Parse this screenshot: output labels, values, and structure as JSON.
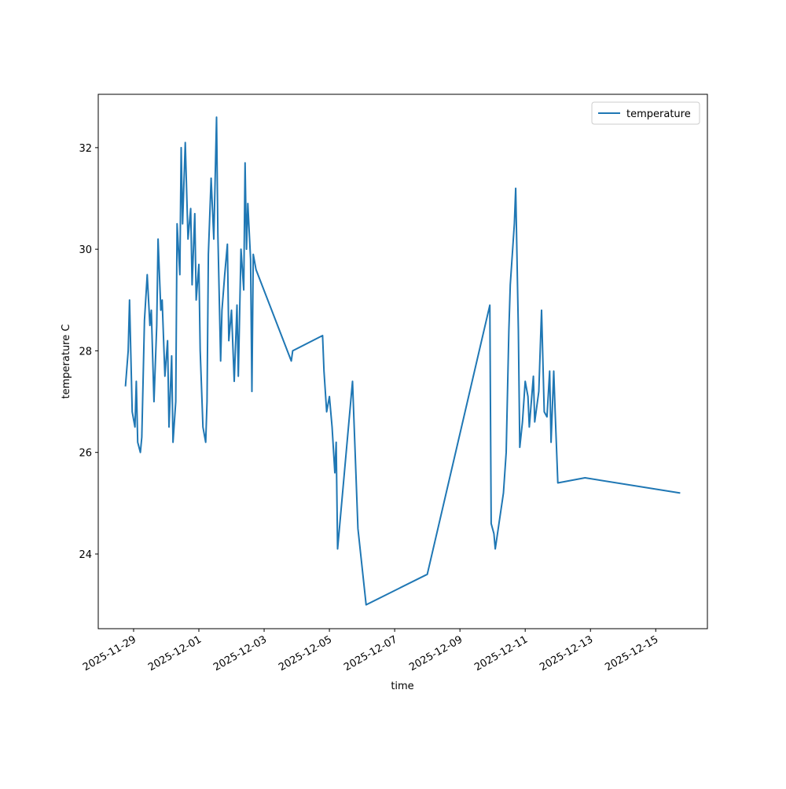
{
  "chart_data": {
    "type": "line",
    "x": [
      "2025-11-28T18:00",
      "2025-11-28T20:00",
      "2025-11-28T21:00",
      "2025-11-28T22:00",
      "2025-11-28T23:00",
      "2025-11-29T01:00",
      "2025-11-29T02:00",
      "2025-11-29T03:00",
      "2025-11-29T05:00",
      "2025-11-29T06:00",
      "2025-11-29T08:00",
      "2025-11-29T10:00",
      "2025-11-29T12:00",
      "2025-11-29T13:00",
      "2025-11-29T15:00",
      "2025-11-29T17:00",
      "2025-11-29T18:00",
      "2025-11-29T20:00",
      "2025-11-29T21:00",
      "2025-11-29T23:00",
      "2025-11-30T01:00",
      "2025-11-30T02:00",
      "2025-11-30T04:00",
      "2025-11-30T05:00",
      "2025-11-30T07:00",
      "2025-11-30T08:00",
      "2025-11-30T10:00",
      "2025-11-30T11:00",
      "2025-11-30T12:00",
      "2025-11-30T14:00",
      "2025-11-30T16:00",
      "2025-11-30T18:00",
      "2025-11-30T19:00",
      "2025-11-30T21:00",
      "2025-11-30T22:00",
      "2025-12-01T00:00",
      "2025-12-01T01:00",
      "2025-12-01T03:00",
      "2025-12-01T05:00",
      "2025-12-01T06:00",
      "2025-12-01T07:00",
      "2025-12-01T09:00",
      "2025-12-01T11:00",
      "2025-12-01T13:00",
      "2025-12-01T14:00",
      "2025-12-01T16:00",
      "2025-12-01T17:00",
      "2025-12-01T19:00",
      "2025-12-01T21:00",
      "2025-12-01T22:00",
      "2025-12-02T00:00",
      "2025-12-02T02:00",
      "2025-12-02T04:00",
      "2025-12-02T05:00",
      "2025-12-02T07:00",
      "2025-12-02T09:00",
      "2025-12-02T10:00",
      "2025-12-02T11:00",
      "2025-12-02T12:00",
      "2025-12-02T14:00",
      "2025-12-02T15:00",
      "2025-12-02T16:00",
      "2025-12-02T18:00",
      "2025-12-03T20:00",
      "2025-12-03T21:00",
      "2025-12-04T19:00",
      "2025-12-04T20:00",
      "2025-12-04T22:00",
      "2025-12-05T00:00",
      "2025-12-05T02:00",
      "2025-12-05T04:00",
      "2025-12-05T05:00",
      "2025-12-05T06:00",
      "2025-12-05T17:00",
      "2025-12-05T21:00",
      "2025-12-06T03:00",
      "2025-12-08T00:00",
      "2025-12-09T22:00",
      "2025-12-09T23:00",
      "2025-12-10T01:00",
      "2025-12-10T02:00",
      "2025-12-10T08:00",
      "2025-12-10T10:00",
      "2025-12-10T12:00",
      "2025-12-10T13:00",
      "2025-12-10T16:00",
      "2025-12-10T17:00",
      "2025-12-10T19:00",
      "2025-12-10T20:00",
      "2025-12-10T22:00",
      "2025-12-11T00:00",
      "2025-12-11T02:00",
      "2025-12-11T03:00",
      "2025-12-11T06:00",
      "2025-12-11T07:00",
      "2025-12-11T10:00",
      "2025-12-11T12:00",
      "2025-12-11T14:00",
      "2025-12-11T16:00",
      "2025-12-11T18:00",
      "2025-12-11T19:00",
      "2025-12-11T21:00",
      "2025-12-11T22:00",
      "2025-12-12T00:00",
      "2025-12-12T20:00",
      "2025-12-15T18:00"
    ],
    "series": [
      {
        "name": "temperature",
        "color": "#1f77b4",
        "values": [
          27.3,
          28.0,
          29.0,
          27.9,
          26.8,
          26.5,
          27.4,
          26.2,
          26.0,
          26.3,
          28.6,
          29.5,
          28.5,
          28.8,
          27.0,
          28.5,
          30.2,
          28.8,
          29.0,
          27.5,
          28.2,
          26.5,
          27.9,
          26.2,
          27.0,
          30.5,
          29.5,
          32.0,
          30.5,
          32.1,
          30.2,
          30.8,
          29.3,
          30.7,
          29.0,
          29.7,
          28.0,
          26.5,
          26.2,
          27.0,
          29.9,
          31.4,
          30.2,
          32.6,
          30.3,
          27.8,
          28.8,
          29.5,
          30.1,
          28.2,
          28.8,
          27.4,
          28.9,
          27.5,
          30.0,
          29.2,
          31.7,
          30.0,
          30.9,
          29.8,
          27.2,
          29.9,
          29.6,
          27.8,
          28.0,
          28.3,
          27.6,
          26.8,
          27.1,
          26.5,
          25.6,
          26.2,
          24.1,
          27.4,
          24.5,
          23.0,
          23.6,
          28.9,
          24.6,
          24.4,
          24.1,
          25.2,
          26.0,
          28.4,
          29.3,
          30.5,
          31.2,
          28.4,
          26.1,
          26.6,
          27.4,
          27.1,
          26.5,
          27.5,
          26.6,
          27.2,
          28.8,
          26.8,
          26.7,
          27.6,
          26.2,
          27.6,
          26.8,
          25.4,
          25.5,
          25.2
        ]
      }
    ],
    "xlabel": "time",
    "ylabel": "temperature C",
    "xlim": [
      "2025-11-27T22:00",
      "2025-12-16T14:00"
    ],
    "xticks": [
      "2025-11-29",
      "2025-12-01",
      "2025-12-03",
      "2025-12-05",
      "2025-12-07",
      "2025-12-09",
      "2025-12-11",
      "2025-12-13",
      "2025-12-15"
    ],
    "ylim": [
      22.53,
      33.05
    ],
    "yticks": [
      24,
      26,
      28,
      30,
      32
    ],
    "grid": false,
    "legend": "upper right"
  }
}
